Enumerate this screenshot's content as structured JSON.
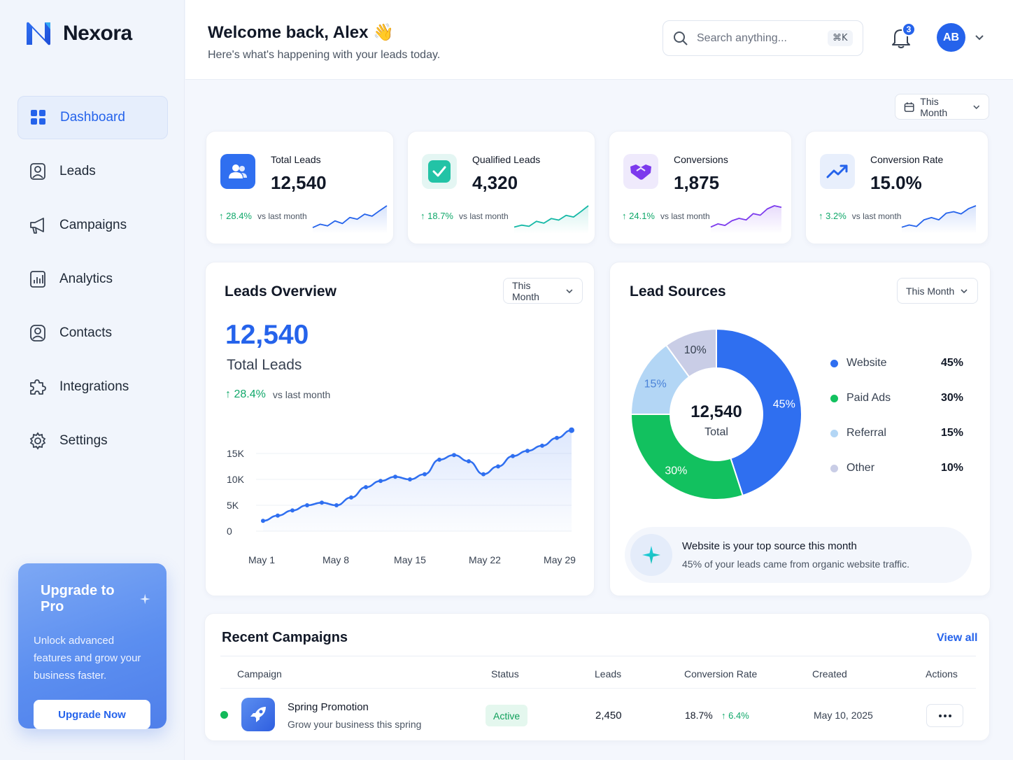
{
  "app": {
    "name": "Nexora",
    "accent": "#2563eb"
  },
  "sidebar": {
    "items": [
      {
        "label": "Dashboard",
        "icon": "grid-icon",
        "active": true
      },
      {
        "label": "Leads",
        "icon": "user-card-icon"
      },
      {
        "label": "Campaigns",
        "icon": "megaphone-icon"
      },
      {
        "label": "Analytics",
        "icon": "bar-chart-icon"
      },
      {
        "label": "Contacts",
        "icon": "contact-icon"
      },
      {
        "label": "Integrations",
        "icon": "puzzle-icon"
      },
      {
        "label": "Settings",
        "icon": "gear-icon"
      }
    ],
    "upgrade": {
      "title": "Upgrade to Pro",
      "text": "Unlock advanced features and grow your business faster.",
      "button": "Upgrade Now"
    }
  },
  "header": {
    "welcome": "Welcome back, Alex 👋",
    "subtitle": "Here's what's happening with your leads today.",
    "search_placeholder": "Search anything...",
    "search_shortcut": "⌘K",
    "notifications_count": "3",
    "avatar_initials": "AB"
  },
  "period": "This Month",
  "stats": [
    {
      "label": "Total Leads",
      "value": "12,540",
      "delta": "28.4%",
      "delta_text": "vs last month",
      "color": "#2563eb",
      "icon": "users-icon",
      "spark": [
        3,
        4,
        3.5,
        5,
        4.2,
        6,
        5.5,
        7,
        6.4,
        8,
        9.5
      ]
    },
    {
      "label": "Qualified Leads",
      "value": "4,320",
      "delta": "18.7%",
      "delta_text": "vs last month",
      "color": "#14b8a6",
      "icon": "check-icon",
      "spark": [
        3,
        3.5,
        3.2,
        4.5,
        4,
        5.2,
        4.8,
        6,
        5.6,
        7,
        8.5
      ]
    },
    {
      "label": "Conversions",
      "value": "1,875",
      "delta": "24.1%",
      "delta_text": "vs last month",
      "color": "#7c3aed",
      "icon": "handshake-icon",
      "spark": [
        3,
        3.8,
        3.4,
        4.6,
        5.2,
        4.8,
        6.4,
        6,
        7.6,
        8.4,
        8
      ]
    },
    {
      "label": "Conversion Rate",
      "value": "15.0%",
      "delta": "3.2%",
      "delta_text": "vs last month",
      "color": "#2563eb",
      "icon": "trend-up-icon",
      "spark": [
        3,
        3.6,
        3.2,
        5,
        5.6,
        5,
        6.8,
        7.2,
        6.6,
        8,
        8.8
      ]
    }
  ],
  "overview": {
    "title": "Leads Overview",
    "value": "12,540",
    "value_label": "Total Leads",
    "delta": "28.4%",
    "delta_text": "vs last month"
  },
  "sources": {
    "title": "Lead Sources",
    "center_value": "12,540",
    "center_label": "Total",
    "legend": [
      {
        "name": "Website",
        "value": "45%",
        "color": "#2f6ff0"
      },
      {
        "name": "Paid Ads",
        "value": "30%",
        "color": "#12c15f"
      },
      {
        "name": "Referral",
        "value": "15%",
        "color": "#b3d6f5"
      },
      {
        "name": "Other",
        "value": "10%",
        "color": "#c9cde6"
      }
    ],
    "insight_title": "Website is your top source this month",
    "insight_text": "45% of your leads came from organic website traffic."
  },
  "chart_data": {
    "type": "line",
    "x": [
      "May 1",
      "May 2",
      "May 3",
      "May 5",
      "May 6",
      "May 8",
      "May 9",
      "May 10",
      "May 12",
      "May 13",
      "May 15",
      "May 16",
      "May 18",
      "May 19",
      "May 20",
      "May 21",
      "May 23",
      "May 24",
      "May 26",
      "May 27",
      "May 28",
      "May 29"
    ],
    "xticks": [
      "May 1",
      "May 8",
      "May 15",
      "May 22",
      "May 29"
    ],
    "yticks": [
      "0",
      "5K",
      "10K",
      "15K"
    ],
    "values": [
      2000,
      3000,
      4000,
      5000,
      5500,
      5000,
      6500,
      8500,
      9700,
      10500,
      10000,
      11000,
      13800,
      14700,
      13500,
      11000,
      12500,
      14500,
      15500,
      16500,
      18000,
      19500
    ],
    "ylim": [
      0,
      20000
    ]
  },
  "lead_sources_chart": {
    "type": "pie",
    "categories": [
      "Website",
      "Paid Ads",
      "Referral",
      "Other"
    ],
    "values": [
      45,
      30,
      15,
      10
    ]
  },
  "campaigns": {
    "title": "Recent Campaigns",
    "view_all": "View all",
    "columns": [
      "Campaign",
      "Status",
      "Leads",
      "Conversion Rate",
      "Created",
      "Actions"
    ],
    "rows": [
      {
        "name": "Spring Promotion",
        "desc": "Grow your business this spring",
        "status": "Active",
        "leads": "2,450",
        "rate": "18.7%",
        "rate_delta": "6.4%",
        "created": "May 10, 2025"
      }
    ]
  }
}
